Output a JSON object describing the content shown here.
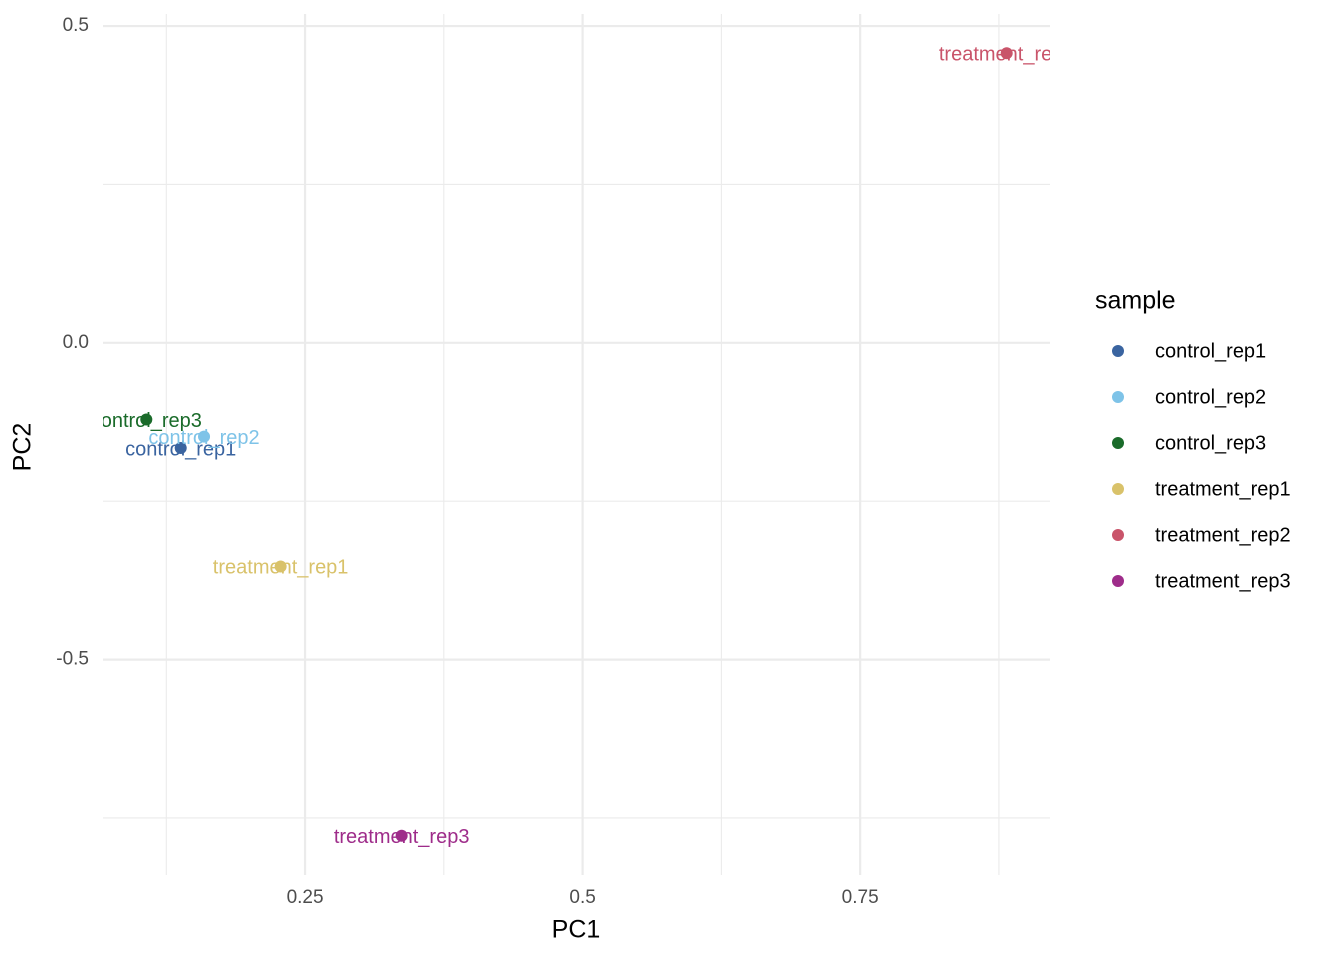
{
  "chart_data": {
    "type": "scatter",
    "x_label": "PC1",
    "y_label": "PC2",
    "legend_title": "sample",
    "xlim": [
      0.068,
      0.921
    ],
    "ylim": [
      -0.84,
      0.519
    ],
    "xticks": [
      0.25,
      0.5,
      0.75
    ],
    "yticks": [
      {
        "value": 0.5,
        "label": "0.5"
      },
      {
        "value": 0,
        "label": "0.0"
      },
      {
        "value": -0.5,
        "label": "-0.5"
      }
    ],
    "x_minor_grid": [
      0.125,
      0.375,
      0.625,
      0.875
    ],
    "y_minor_grid": [
      0.25,
      -0.25,
      -0.75
    ],
    "grid": true,
    "legend": "right",
    "series": [
      {
        "name": "control_rep1",
        "color": "#3a64a0",
        "x": [
          0.138
        ],
        "values": [
          -0.166
        ]
      },
      {
        "name": "control_rep2",
        "color": "#7ec3e8",
        "x": [
          0.159
        ],
        "values": [
          -0.148
        ]
      },
      {
        "name": "control_rep3",
        "color": "#1a6b2a",
        "x": [
          0.107
        ],
        "values": [
          -0.121
        ]
      },
      {
        "name": "treatment_rep1",
        "color": "#d9c26a",
        "x": [
          0.228
        ],
        "values": [
          -0.353
        ]
      },
      {
        "name": "treatment_rep2",
        "color": "#c9546a",
        "x": [
          0.882
        ],
        "values": [
          0.457
        ]
      },
      {
        "name": "treatment_rep3",
        "color": "#9e2c8a",
        "x": [
          0.337
        ],
        "values": [
          -0.778
        ]
      }
    ]
  }
}
